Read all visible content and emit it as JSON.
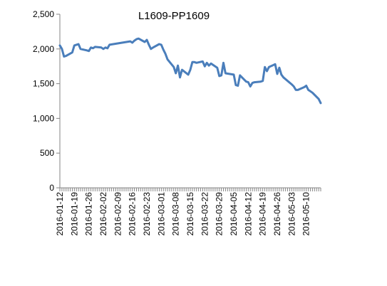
{
  "chart_data": {
    "type": "line",
    "title": "L1609-PP1609",
    "xlabel": "",
    "ylabel": "",
    "ylim": [
      0,
      2500
    ],
    "yticks": [
      0,
      500,
      1000,
      1500,
      2000,
      2500
    ],
    "ytick_labels": [
      "0",
      "500",
      "1,000",
      "1,500",
      "2,000",
      "2,500"
    ],
    "xticks": [
      "2016-01-12",
      "2016-01-19",
      "2016-01-26",
      "2016-02-02",
      "2016-02-09",
      "2016-02-16",
      "2016-02-23",
      "2016-03-01",
      "2016-03-08",
      "2016-03-15",
      "2016-03-22",
      "2016-03-29",
      "2016-04-05",
      "2016-04-12",
      "2016-04-19",
      "2016-04-26",
      "2016-05-03",
      "2016-05-10"
    ],
    "xlim": [
      "2016-01-12",
      "2016-05-17"
    ],
    "grid": false,
    "legend": "none",
    "series": [
      {
        "color": "#4a7ebb",
        "x": [
          "2016-01-12",
          "2016-01-13",
          "2016-01-14",
          "2016-01-15",
          "2016-01-18",
          "2016-01-19",
          "2016-01-20",
          "2016-01-21",
          "2016-01-22",
          "2016-01-25",
          "2016-01-26",
          "2016-01-27",
          "2016-01-28",
          "2016-01-29",
          "2016-02-01",
          "2016-02-02",
          "2016-02-03",
          "2016-02-04",
          "2016-02-05",
          "2016-02-15",
          "2016-02-16",
          "2016-02-17",
          "2016-02-18",
          "2016-02-19",
          "2016-02-22",
          "2016-02-23",
          "2016-02-24",
          "2016-02-25",
          "2016-02-26",
          "2016-02-29",
          "2016-03-01",
          "2016-03-02",
          "2016-03-03",
          "2016-03-04",
          "2016-03-07",
          "2016-03-08",
          "2016-03-09",
          "2016-03-10",
          "2016-03-11",
          "2016-03-14",
          "2016-03-15",
          "2016-03-16",
          "2016-03-17",
          "2016-03-18",
          "2016-03-21",
          "2016-03-22",
          "2016-03-23",
          "2016-03-24",
          "2016-03-25",
          "2016-03-28",
          "2016-03-29",
          "2016-03-30",
          "2016-03-31",
          "2016-04-01",
          "2016-04-05",
          "2016-04-06",
          "2016-04-07",
          "2016-04-08",
          "2016-04-11",
          "2016-04-12",
          "2016-04-13",
          "2016-04-14",
          "2016-04-15",
          "2016-04-18",
          "2016-04-19",
          "2016-04-20",
          "2016-04-21",
          "2016-04-22",
          "2016-04-25",
          "2016-04-26",
          "2016-04-27",
          "2016-04-28",
          "2016-04-29",
          "2016-05-03",
          "2016-05-04",
          "2016-05-05",
          "2016-05-06",
          "2016-05-09",
          "2016-05-10",
          "2016-05-11",
          "2016-05-12",
          "2016-05-13",
          "2016-05-16",
          "2016-05-17"
        ],
        "y": [
          2050,
          2000,
          1890,
          1900,
          1950,
          2050,
          2060,
          2070,
          2000,
          1980,
          1970,
          2020,
          2010,
          2030,
          2020,
          2000,
          2020,
          2010,
          2060,
          2110,
          2090,
          2120,
          2140,
          2150,
          2100,
          2130,
          2060,
          2000,
          2020,
          2070,
          2060,
          1990,
          1930,
          1850,
          1740,
          1650,
          1760,
          1590,
          1700,
          1630,
          1700,
          1810,
          1810,
          1800,
          1820,
          1750,
          1800,
          1760,
          1790,
          1730,
          1610,
          1620,
          1800,
          1650,
          1630,
          1480,
          1470,
          1620,
          1530,
          1520,
          1460,
          1510,
          1520,
          1530,
          1540,
          1740,
          1680,
          1740,
          1780,
          1640,
          1730,
          1630,
          1590,
          1490,
          1460,
          1410,
          1410,
          1450,
          1470,
          1410,
          1390,
          1370,
          1280,
          1220
        ]
      }
    ]
  }
}
